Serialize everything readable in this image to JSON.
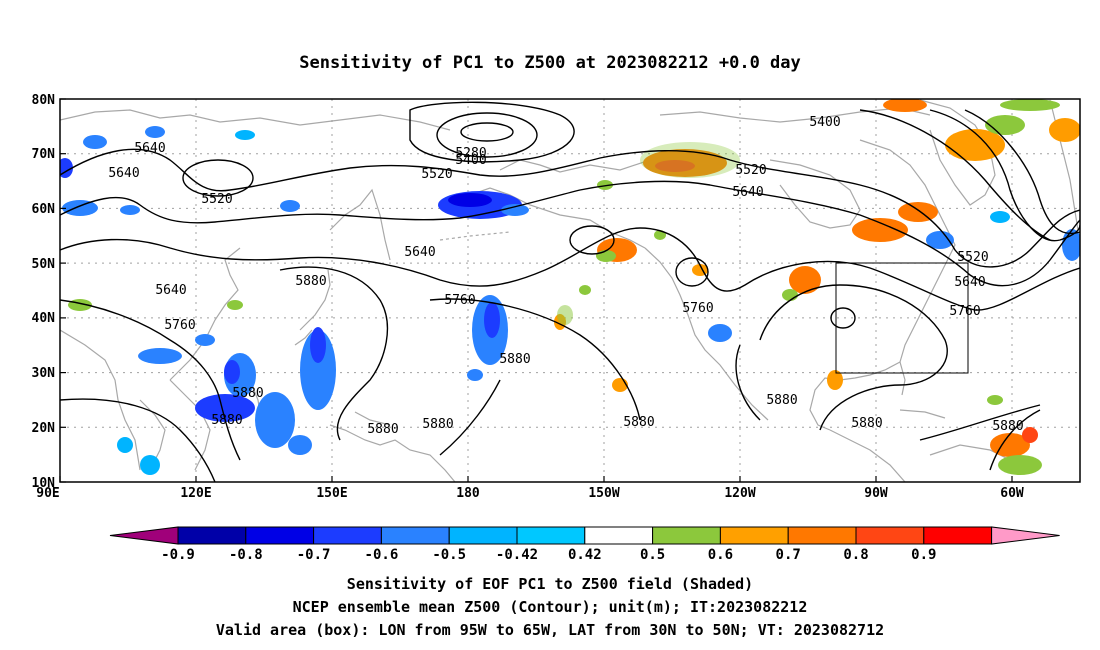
{
  "title": "Sensitivity of PC1 to Z500 at 2023082212 +0.0 day",
  "lat_labels": [
    "80N",
    "70N",
    "60N",
    "50N",
    "40N",
    "30N",
    "20N",
    "10N"
  ],
  "lon_labels": [
    "90E",
    "120E",
    "150E",
    "180",
    "150W",
    "120W",
    "90W",
    "60W"
  ],
  "contour_labels": {
    "c5640a": "5640",
    "c5640b": "5640",
    "c5520a": "5520",
    "c5280": "5280",
    "c5400a": "5400",
    "c5520b": "5520",
    "c5640c": "5640",
    "c5520c": "5520",
    "c5400b": "5400",
    "c5640d": "5640",
    "c5640e": "5640",
    "c5760a": "5760",
    "c5880a": "5880",
    "c5760b": "5760",
    "c5880b": "5880",
    "c5880c": "5880",
    "c5880d": "5880",
    "c5880e": "5880",
    "c5880f": "5880",
    "c5760c": "5760",
    "c5880g": "5880",
    "c5880h": "5880",
    "c5880i": "5880",
    "c5520d": "5520",
    "c5640f": "5640",
    "c5760d": "5760",
    "c5880j": "5880"
  },
  "colorbar": {
    "labels": [
      "-0.9",
      "-0.8",
      "-0.7",
      "-0.6",
      "-0.5",
      "-0.42",
      "0.42",
      "0.5",
      "0.6",
      "0.7",
      "0.8",
      "0.9"
    ],
    "colors": [
      "#a0007a",
      "#0000a8",
      "#0000e6",
      "#1c3cff",
      "#2a82ff",
      "#00b4ff",
      "#00c8ff",
      "#ffffff",
      "#8cc83c",
      "#ffa000",
      "#ff7800",
      "#ff4614",
      "#ff0000",
      "#ff9ac8"
    ]
  },
  "caption": {
    "line1": "Sensitivity of EOF PC1 to Z500 field (Shaded)",
    "line2": "NCEP ensemble mean Z500 (Contour); unit(m); IT:2023082212",
    "line3": "Valid area (box): LON from 95W to 65W, LAT from 30N to 50N; VT: 2023082712"
  }
}
